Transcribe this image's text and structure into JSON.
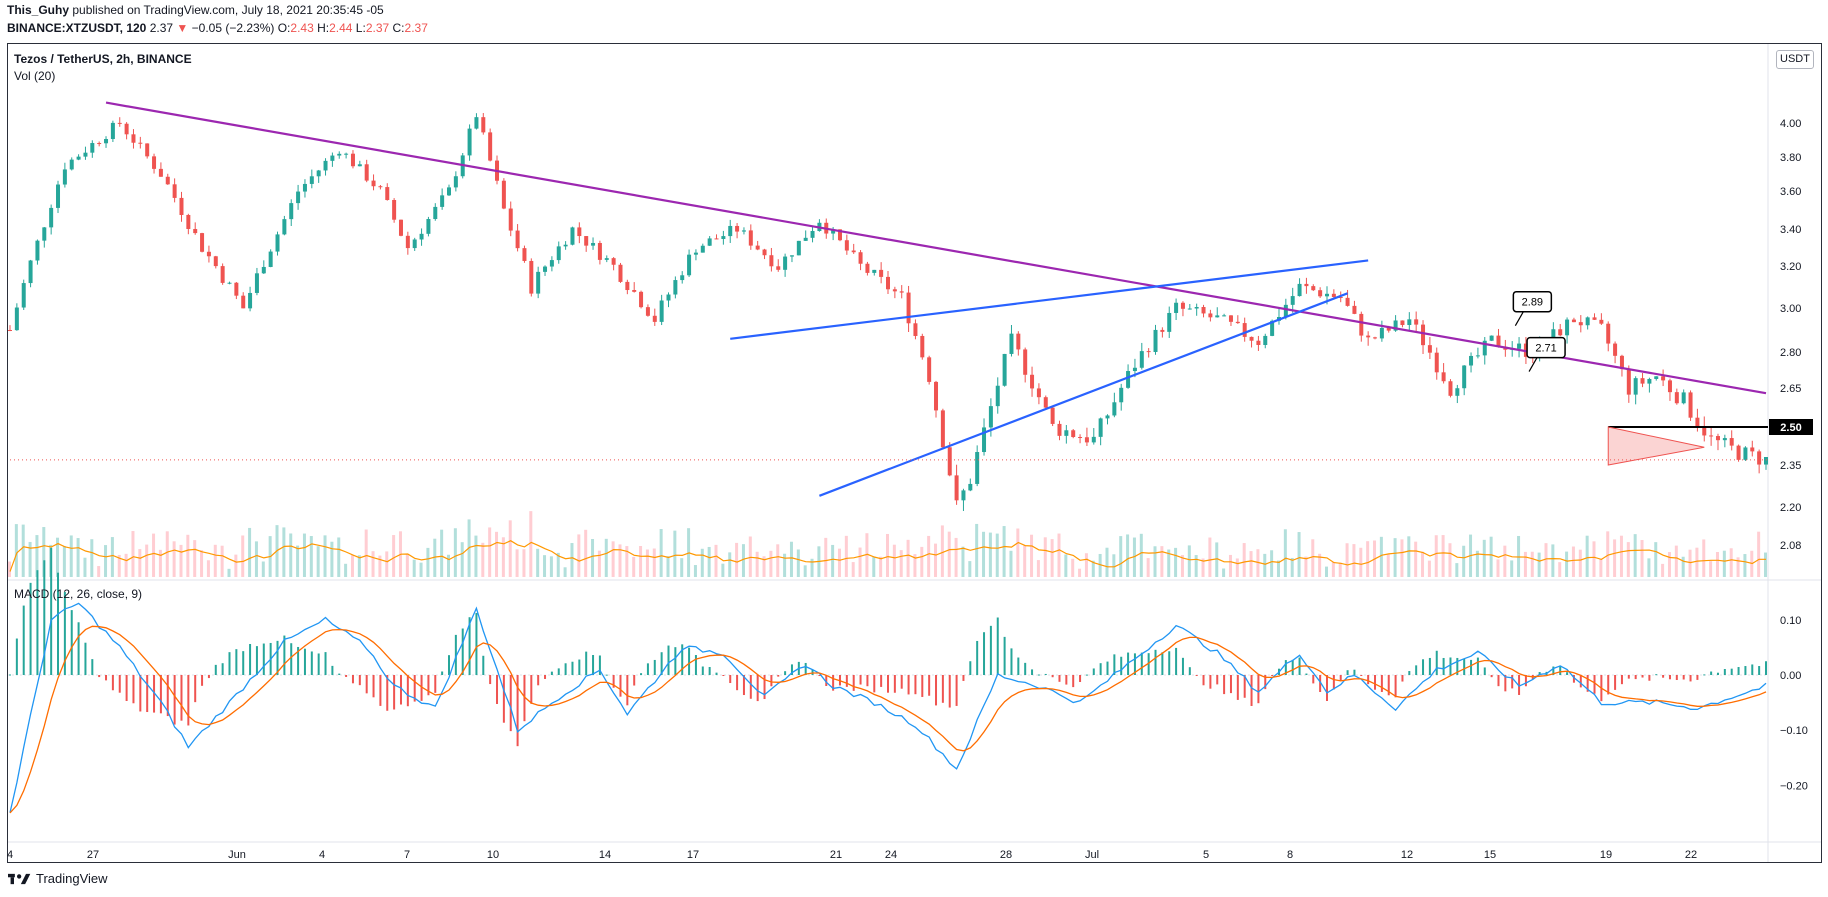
{
  "header": {
    "author": "This_Guhy",
    "published_text": "published on TradingView.com, July 18, 2021 20:35:45 -05",
    "symbol": "BINANCE:XTZUSDT, 120",
    "last": "2.37",
    "change_arrow": "▼",
    "change": "−0.05 (−2.23%)",
    "o_label": "O:",
    "o_value": "2.43",
    "h_label": "H:",
    "h_value": "2.44",
    "l_label": "L:",
    "l_value": "2.37",
    "c_label": "C:",
    "c_value": "2.37"
  },
  "chart": {
    "title": "Tezos / TetherUS, 2h, BINANCE",
    "volume_label": "Vol (20)",
    "macd_label": "MACD (12, 26, close, 9)",
    "currency_button": "USDT",
    "current_price_label": "2.50",
    "callouts": [
      "2.89",
      "2.71"
    ],
    "price_axis_ticks": [
      "4.00",
      "3.80",
      "3.60",
      "3.40",
      "3.20",
      "3.00",
      "2.80",
      "2.65",
      "2.35",
      "2.20",
      "2.08"
    ],
    "macd_axis_ticks": [
      "0.10",
      "0.00",
      "−0.10",
      "−0.20"
    ],
    "time_axis_ticks": [
      "4",
      "27",
      "Jun",
      "4",
      "7",
      "10",
      "14",
      "17",
      "21",
      "24",
      "28",
      "Jul",
      "5",
      "8",
      "12",
      "15",
      "19",
      "22"
    ]
  },
  "chart_data": {
    "type": "candlestick",
    "symbol": "BINANCE:XTZUSDT",
    "price_path": [
      [
        0,
        2.9
      ],
      [
        8,
        3.75
      ],
      [
        16,
        4.0
      ],
      [
        22,
        3.7
      ],
      [
        28,
        3.3
      ],
      [
        34,
        3.0
      ],
      [
        42,
        3.6
      ],
      [
        48,
        3.85
      ],
      [
        54,
        3.6
      ],
      [
        58,
        3.3
      ],
      [
        64,
        3.6
      ],
      [
        68,
        4.05
      ],
      [
        72,
        3.5
      ],
      [
        76,
        3.1
      ],
      [
        82,
        3.4
      ],
      [
        88,
        3.2
      ],
      [
        94,
        2.95
      ],
      [
        100,
        3.3
      ],
      [
        106,
        3.4
      ],
      [
        112,
        3.2
      ],
      [
        118,
        3.45
      ],
      [
        124,
        3.2
      ],
      [
        130,
        3.05
      ],
      [
        134,
        2.7
      ],
      [
        138,
        2.2
      ],
      [
        140,
        2.3
      ],
      [
        146,
        2.85
      ],
      [
        152,
        2.5
      ],
      [
        158,
        2.45
      ],
      [
        164,
        2.75
      ],
      [
        170,
        3.0
      ],
      [
        176,
        2.95
      ],
      [
        182,
        2.85
      ],
      [
        188,
        3.1
      ],
      [
        194,
        3.05
      ],
      [
        198,
        2.85
      ],
      [
        204,
        2.95
      ],
      [
        210,
        2.65
      ],
      [
        216,
        2.85
      ],
      [
        222,
        2.8
      ],
      [
        228,
        2.95
      ],
      [
        232,
        2.9
      ],
      [
        236,
        2.65
      ],
      [
        240,
        2.7
      ],
      [
        244,
        2.6
      ],
      [
        248,
        2.45
      ],
      [
        252,
        2.4
      ],
      [
        256,
        2.37
      ]
    ],
    "macd_path": [
      [
        0,
        -0.25
      ],
      [
        6,
        0.1
      ],
      [
        10,
        0.13
      ],
      [
        16,
        0.05
      ],
      [
        22,
        -0.05
      ],
      [
        26,
        -0.13
      ],
      [
        32,
        -0.05
      ],
      [
        40,
        0.06
      ],
      [
        46,
        0.1
      ],
      [
        52,
        0.05
      ],
      [
        56,
        -0.02
      ],
      [
        62,
        -0.06
      ],
      [
        68,
        0.12
      ],
      [
        74,
        -0.1
      ],
      [
        80,
        -0.04
      ],
      [
        86,
        0.01
      ],
      [
        90,
        -0.07
      ],
      [
        98,
        0.05
      ],
      [
        104,
        0.04
      ],
      [
        110,
        -0.04
      ],
      [
        116,
        0.02
      ],
      [
        120,
        -0.02
      ],
      [
        126,
        -0.05
      ],
      [
        132,
        -0.09
      ],
      [
        138,
        -0.17
      ],
      [
        144,
        0.0
      ],
      [
        150,
        -0.02
      ],
      [
        156,
        -0.05
      ],
      [
        164,
        0.03
      ],
      [
        170,
        0.09
      ],
      [
        176,
        0.04
      ],
      [
        182,
        -0.03
      ],
      [
        188,
        0.04
      ],
      [
        192,
        -0.03
      ],
      [
        196,
        0.0
      ],
      [
        202,
        -0.06
      ],
      [
        208,
        0.01
      ],
      [
        214,
        0.04
      ],
      [
        220,
        -0.02
      ],
      [
        226,
        0.02
      ],
      [
        232,
        -0.05
      ],
      [
        240,
        -0.05
      ],
      [
        246,
        -0.06
      ],
      [
        256,
        -0.02
      ]
    ],
    "price_ylim": [
      2.05,
      4.25
    ],
    "macd_ylim": [
      -0.26,
      0.15
    ],
    "overlays": {
      "long_downtrend_line": [
        [
          14,
          4.12
        ],
        [
          256,
          2.63
        ]
      ],
      "channel_upper_line": [
        [
          105,
          2.86
        ],
        [
          198,
          3.23
        ]
      ],
      "channel_lower_line": [
        [
          118,
          2.24
        ],
        [
          195,
          3.07
        ]
      ],
      "support_line": 2.37,
      "current_price_line": 2.5,
      "triangle_start": 2.5
    },
    "colors": {
      "up": "#26a69a",
      "down": "#ef5350",
      "downtrend_line": "#9c27b0",
      "channel_lines": "#2962ff",
      "macd_line": "#2196f3",
      "signal_line": "#ff6d00",
      "volume_ma": "#ff9800"
    }
  },
  "footer": {
    "brand": "TradingView"
  }
}
